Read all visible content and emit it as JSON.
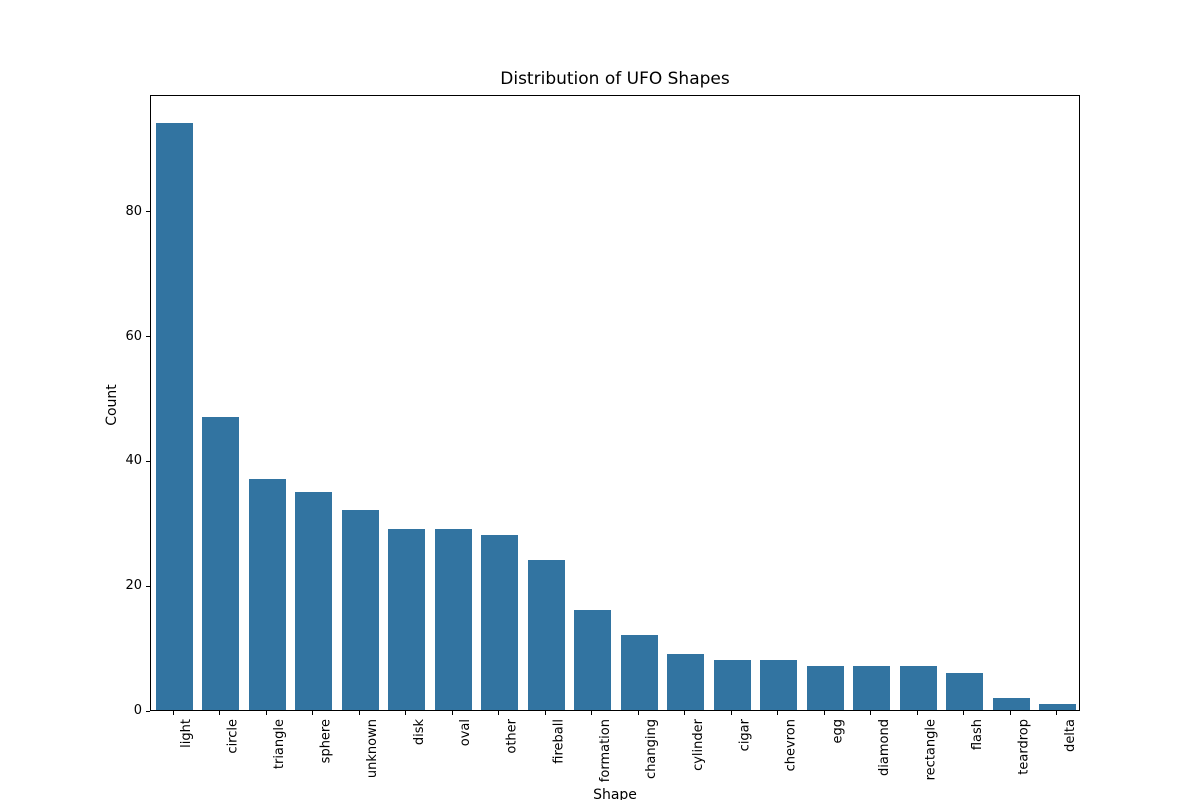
{
  "chart_data": {
    "type": "bar",
    "title": "Distribution of UFO Shapes",
    "xlabel": "Shape",
    "ylabel": "Count",
    "categories": [
      "light",
      "circle",
      "triangle",
      "sphere",
      "unknown",
      "disk",
      "oval",
      "other",
      "fireball",
      "formation",
      "changing",
      "cylinder",
      "cigar",
      "chevron",
      "egg",
      "diamond",
      "rectangle",
      "flash",
      "teardrop",
      "delta"
    ],
    "values": [
      94,
      47,
      37,
      35,
      32,
      29,
      29,
      28,
      24,
      16,
      12,
      9,
      8,
      8,
      7,
      7,
      7,
      6,
      2,
      1
    ],
    "yticks": [
      0,
      20,
      40,
      60,
      80
    ],
    "ylim": [
      0,
      98.7
    ],
    "bar_color": "#3274a1",
    "grid": false,
    "legend": null,
    "x_tick_rotation": 90
  }
}
